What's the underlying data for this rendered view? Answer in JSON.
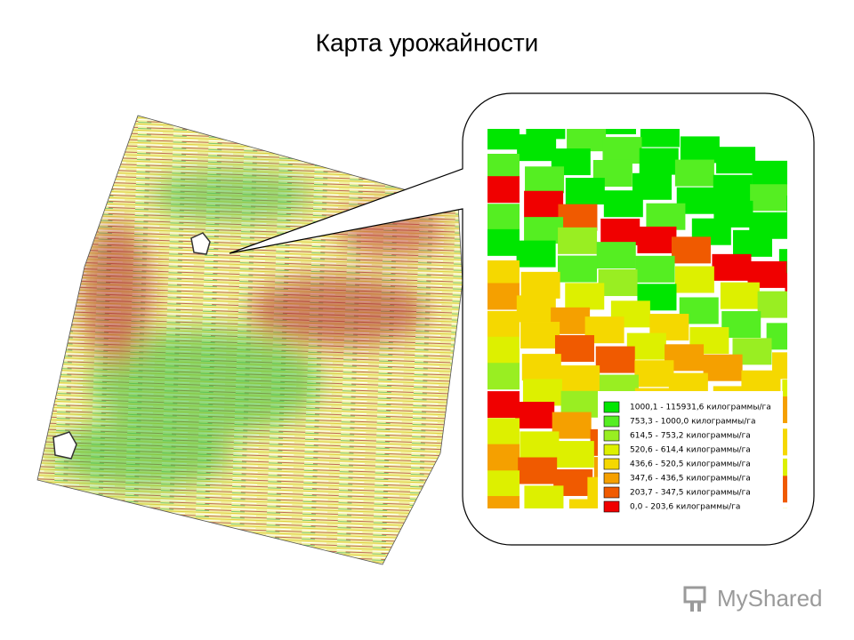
{
  "title": "Карта урожайности",
  "legend": [
    {
      "label": "1000,1 - 115931,6 килограммы/га",
      "color": "#00e600"
    },
    {
      "label": "753,3 - 1000,0 килограммы/га",
      "color": "#55ee22"
    },
    {
      "label": "614,5 - 753,2 килограммы/га",
      "color": "#99ee22"
    },
    {
      "label": "520,6 - 614,4 килограммы/га",
      "color": "#ddf000"
    },
    {
      "label": "436,6 - 520,5 килограммы/га",
      "color": "#f5d800"
    },
    {
      "label": "347,6 - 436,5 килограммы/га",
      "color": "#f5a000"
    },
    {
      "label": "203,7 - 347,5 килограммы/га",
      "color": "#f05a00"
    },
    {
      "label": "0,0 - 203,6 килограммы/га",
      "color": "#f00000"
    }
  ],
  "watermark": "MyShared"
}
